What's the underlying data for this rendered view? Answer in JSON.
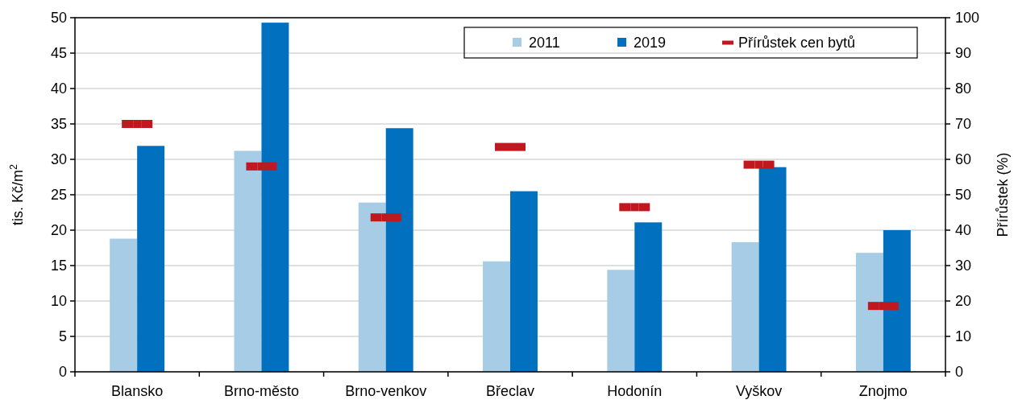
{
  "chart_data": {
    "type": "bar",
    "categories": [
      "Blansko",
      "Brno-město",
      "Brno-venkov",
      "Břeclav",
      "Hodonín",
      "Vyškov",
      "Znojmo"
    ],
    "series": [
      {
        "name": "2011",
        "color": "#a6cce6",
        "values": [
          18.8,
          31.2,
          23.9,
          15.6,
          14.4,
          18.3,
          16.8
        ]
      },
      {
        "name": "2019",
        "color": "#0070bf",
        "values": [
          31.9,
          49.3,
          34.4,
          25.5,
          21.1,
          28.9,
          20.0
        ]
      },
      {
        "name": "Přírůstek cen bytů",
        "type": "scatter",
        "axis": "y2",
        "color": "#c0181f",
        "values": [
          70.0,
          58.0,
          43.6,
          63.5,
          46.5,
          58.5,
          18.6
        ]
      }
    ],
    "ylabel": "tis. Kč/m$^{2}$",
    "y2label": "Přírůstek (%)",
    "ylim": [
      0,
      50
    ],
    "yticks": [
      0,
      5,
      10,
      15,
      20,
      25,
      30,
      35,
      40,
      45,
      50
    ],
    "y2lim": [
      0,
      100
    ],
    "y2ticks": [
      0,
      10,
      20,
      30,
      40,
      50,
      60,
      70,
      80,
      90,
      100
    ],
    "grid": "y",
    "legend": "top right"
  }
}
